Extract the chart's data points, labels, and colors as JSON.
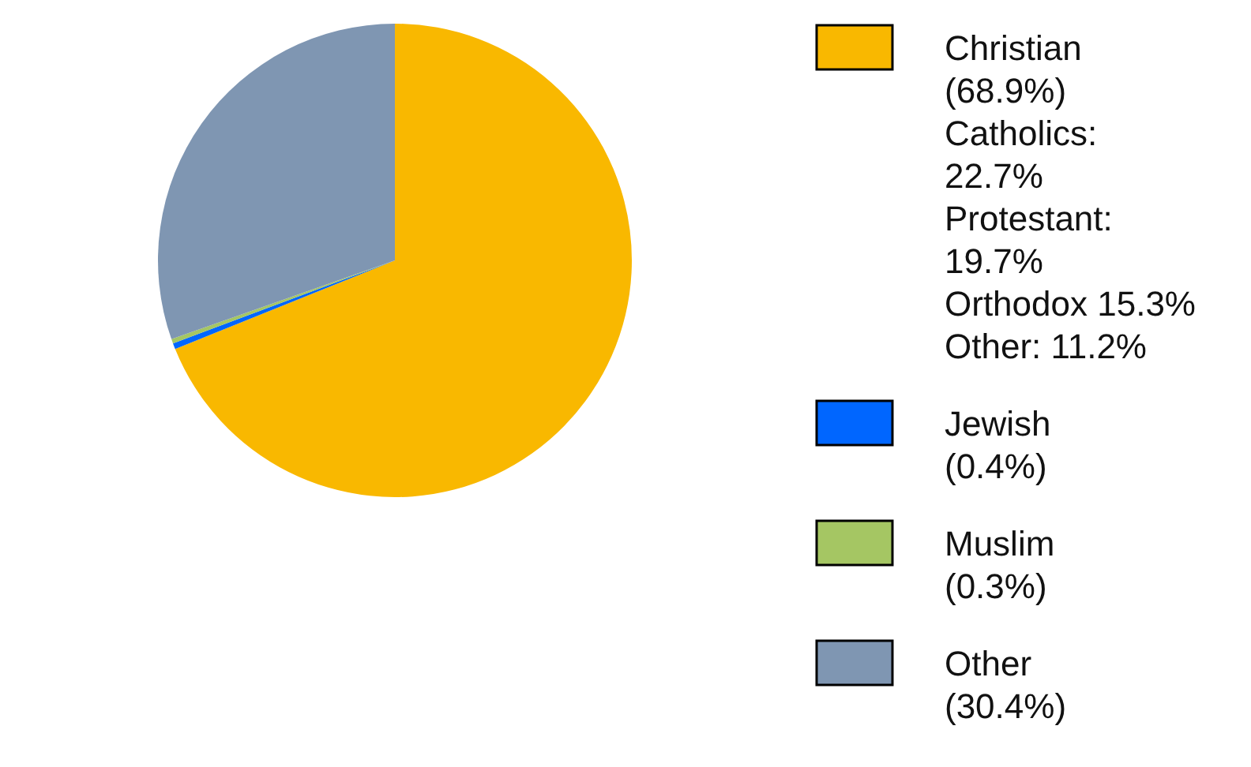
{
  "chart_data": {
    "type": "pie",
    "categories": [
      "Christian (68.9%)",
      "Jewish (0.4%)",
      "Muslim (0.3%)",
      "Other (30.4%)"
    ],
    "values": [
      68.9,
      0.4,
      0.3,
      30.4
    ],
    "colors": [
      "#f9b800",
      "#0066ff",
      "#a5c663",
      "#7f96b2"
    ],
    "legend": "right",
    "annotations": [
      "Catholics: 22.7%",
      "Protestant: 19.7%",
      "Orthodox 15.3%",
      "Other: 11.2%"
    ]
  }
}
